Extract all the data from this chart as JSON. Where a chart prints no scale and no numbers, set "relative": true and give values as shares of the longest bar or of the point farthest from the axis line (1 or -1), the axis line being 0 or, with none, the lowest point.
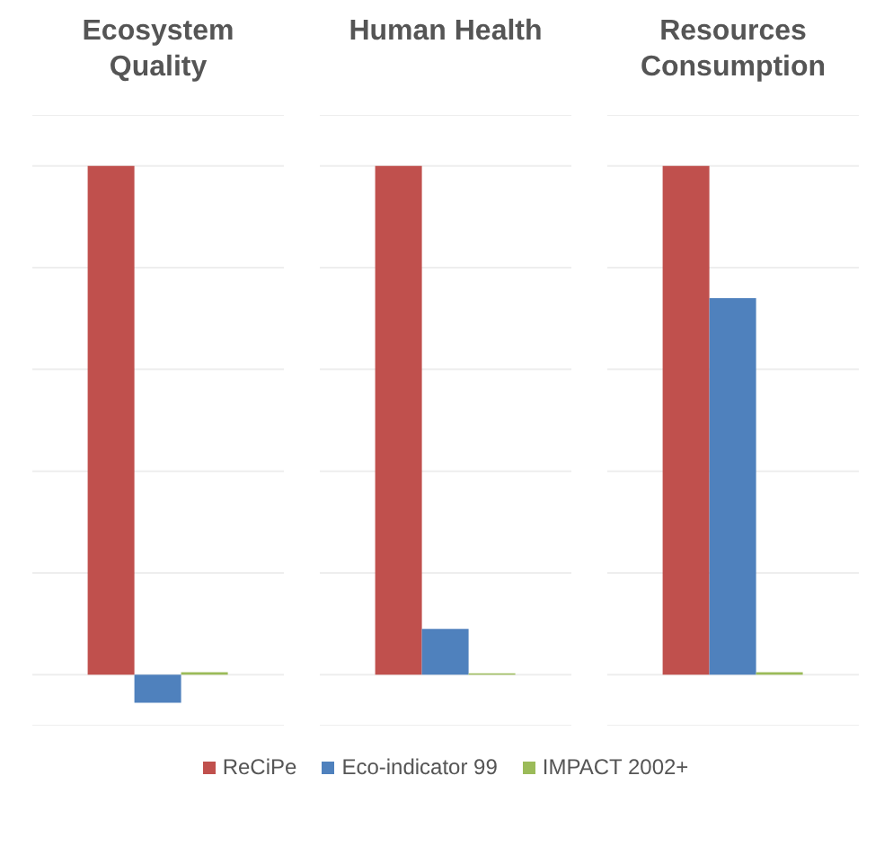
{
  "chart_data": [
    {
      "type": "bar",
      "title": "Ecosystem Quality",
      "categories": [
        null
      ],
      "relative": true,
      "grid": "y",
      "legend": "bottom",
      "series": [
        {
          "name": "ReCiPe",
          "color": "#c0504d",
          "values": [
            1
          ]
        },
        {
          "name": "Eco-indicator 99",
          "color": "#4f81bd",
          "values": [
            -0.055
          ]
        },
        {
          "name": "IMPACT 2002+",
          "color": "#9bbb59",
          "values": [
            0.005
          ]
        }
      ]
    },
    {
      "type": "bar",
      "title": "Human Health",
      "categories": [
        null
      ],
      "relative": true,
      "grid": "y",
      "series": [
        {
          "color": "#c0504d",
          "values": [
            1
          ]
        },
        {
          "color": "#4f81bd",
          "values": [
            0.09
          ]
        },
        {
          "color": "#9bbb59",
          "values": [
            0.003
          ]
        }
      ]
    },
    {
      "type": "bar",
      "title": "Resources Consumption",
      "categories": [
        null
      ],
      "relative": true,
      "grid": "y",
      "series": [
        {
          "color": "#c0504d",
          "values": [
            1
          ]
        },
        {
          "color": "#4f81bd",
          "values": [
            0.74
          ]
        },
        {
          "color": "#9bbb59",
          "values": [
            0.005
          ]
        }
      ]
    }
  ]
}
